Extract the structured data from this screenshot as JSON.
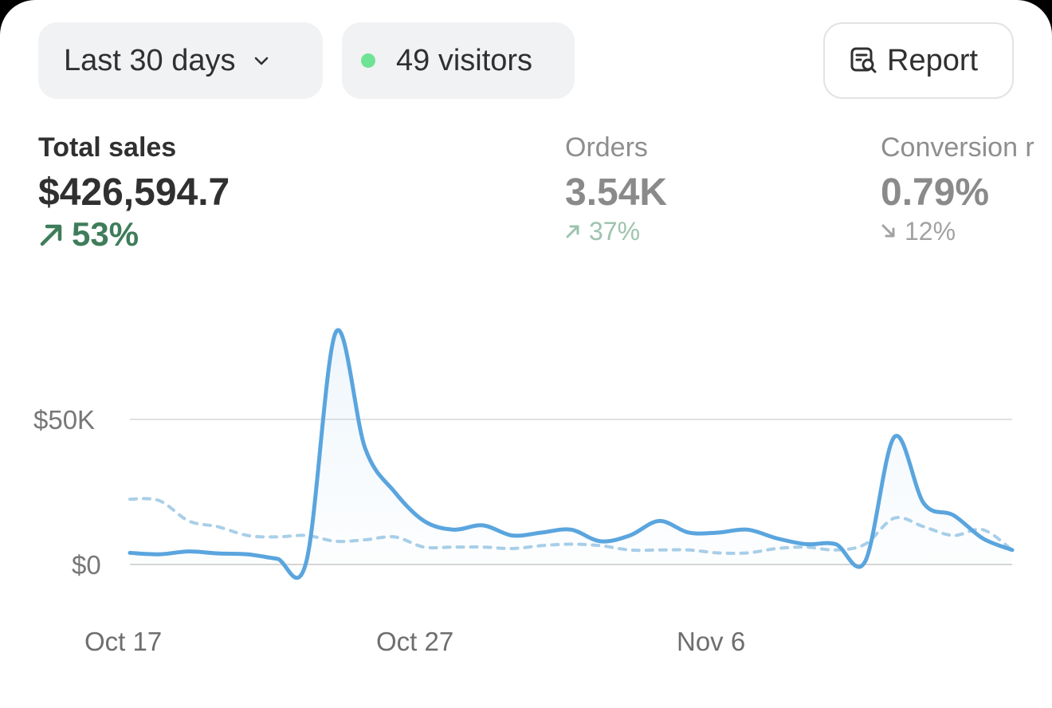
{
  "filters": {
    "range_label": "Last 30 days",
    "visitors_label": "49 visitors",
    "report_label": "Report"
  },
  "metrics": [
    {
      "label": "Total sales",
      "value": "$426,594.7",
      "delta": "53%",
      "direction": "up"
    },
    {
      "label": "Orders",
      "value": "3.54K",
      "delta": "37%",
      "direction": "up"
    },
    {
      "label": "Conversion r",
      "value": "0.79%",
      "delta": "12%",
      "direction": "down"
    }
  ],
  "colors": {
    "current_series": "#5aa5de",
    "comparison_series": "#a9cfe8",
    "positive": "#3f7d5a",
    "live_dot": "#6ee394"
  },
  "chart_data": {
    "type": "line",
    "y_tick_labels": [
      "$50K",
      "$0"
    ],
    "y_ticks": [
      50000,
      0
    ],
    "ylim": [
      0,
      89000
    ],
    "x_tick_labels": [
      "Oct 17",
      "Oct 27",
      "Nov 6"
    ],
    "x_tick_positions": [
      0,
      10,
      20
    ],
    "xlim": [
      0,
      30
    ],
    "series": [
      {
        "style": "solid",
        "x": [
          0,
          1,
          2,
          3,
          4,
          5,
          6,
          7,
          8,
          9,
          10,
          11,
          12,
          13,
          14,
          15,
          16,
          17,
          18,
          19,
          20,
          21,
          22,
          23,
          24,
          25,
          26,
          27,
          28,
          29,
          30
        ],
        "values": [
          4000,
          3500,
          4500,
          3800,
          3500,
          2000,
          1000,
          80000,
          40000,
          25000,
          15000,
          12000,
          13500,
          10000,
          11000,
          12000,
          8000,
          10000,
          15000,
          11000,
          11000,
          12000,
          9000,
          7000,
          7000,
          1000,
          44000,
          21000,
          17000,
          9000,
          5000
        ]
      },
      {
        "style": "dashed",
        "x": [
          0,
          1,
          2,
          3,
          4,
          5,
          6,
          7,
          8,
          9,
          10,
          11,
          12,
          13,
          14,
          15,
          16,
          17,
          18,
          19,
          20,
          21,
          22,
          23,
          24,
          25,
          26,
          27,
          28,
          29,
          30
        ],
        "values": [
          22500,
          22000,
          15000,
          13000,
          10000,
          9500,
          10000,
          8000,
          8500,
          9500,
          6000,
          6000,
          6000,
          5500,
          6500,
          7000,
          6500,
          5000,
          5000,
          5000,
          4000,
          4000,
          5500,
          6000,
          5000,
          7000,
          16000,
          13000,
          10000,
          12000,
          5000
        ]
      }
    ]
  }
}
